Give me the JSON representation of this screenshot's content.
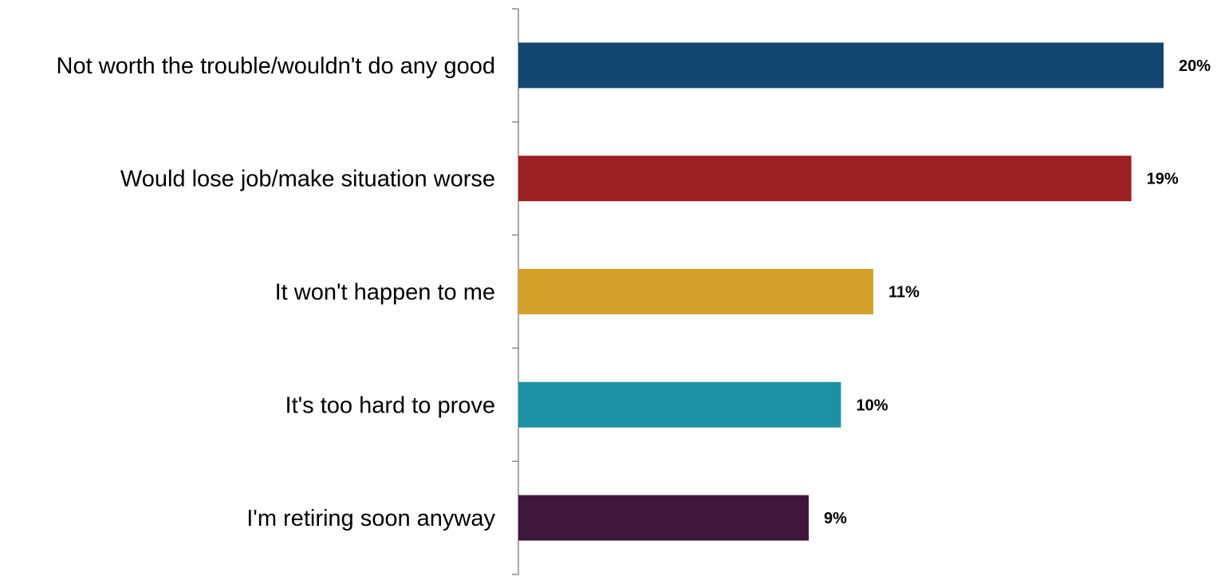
{
  "chart_data": {
    "type": "bar",
    "orientation": "horizontal",
    "categories": [
      "Not worth the trouble/wouldn't do any good",
      "Would lose job/make situation worse",
      "It won't happen to me",
      "It's too hard to prove",
      "I'm retiring soon anyway"
    ],
    "values": [
      20,
      19,
      11,
      10,
      9
    ],
    "value_labels": [
      "20%",
      "19%",
      "11%",
      "10%",
      "9%"
    ],
    "colors": [
      "#124570",
      "#9C2123",
      "#D4A02A",
      "#1E91A4",
      "#3F173D"
    ],
    "unit": "%",
    "xlim": [
      0,
      20
    ],
    "title": "",
    "xlabel": "",
    "ylabel": "",
    "grid": false,
    "legend": "none"
  }
}
